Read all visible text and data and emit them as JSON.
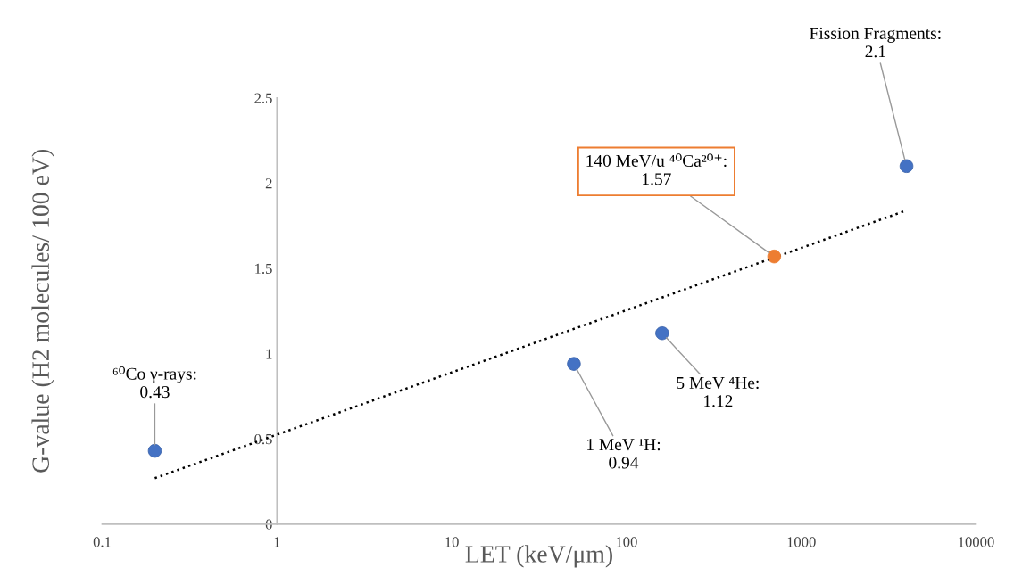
{
  "chart_data": {
    "type": "scatter",
    "xlabel": "LET (keV/μm)",
    "ylabel": "G-value (H2 molecules/ 100 eV)",
    "log": "x",
    "xlim": [
      0.1,
      10000
    ],
    "xticks": [
      0.1,
      1,
      10,
      100,
      1000,
      10000
    ],
    "ylim": [
      0,
      2.5
    ],
    "yticks": [
      0,
      0.5,
      1,
      1.5,
      2,
      2.5
    ],
    "grid": false,
    "marker": "circle",
    "series": [
      {
        "x": [
          0.2,
          50,
          160,
          700,
          4000
        ],
        "values": [
          0.43,
          0.94,
          1.12,
          1.57,
          2.1
        ],
        "colors": [
          "#4472c4",
          "#4472c4",
          "#4472c4",
          "#ed7d31",
          "#4472c4"
        ]
      },
      {
        "type": "line",
        "x": [
          0.2,
          4000
        ],
        "values": [
          0.27,
          1.84
        ],
        "color": "#000000",
        "line_style": "dotted",
        "marker": "none"
      }
    ],
    "annotations": [
      {
        "text": "⁶⁰Co γ-rays:\n0.43",
        "x": 0.2,
        "y": 0.43
      },
      {
        "text": "1 MeV ¹H:\n0.94",
        "x": 50,
        "y": 0.94
      },
      {
        "text": "5 MeV ⁴He:\n1.12",
        "x": 160,
        "y": 1.12
      },
      {
        "text": "140 MeV/u ⁴⁰Ca²⁰⁺:\n1.57",
        "x": 700,
        "y": 1.57
      },
      {
        "text": "Fission Fragments:\n2.1",
        "x": 4000,
        "y": 2.1
      }
    ]
  }
}
